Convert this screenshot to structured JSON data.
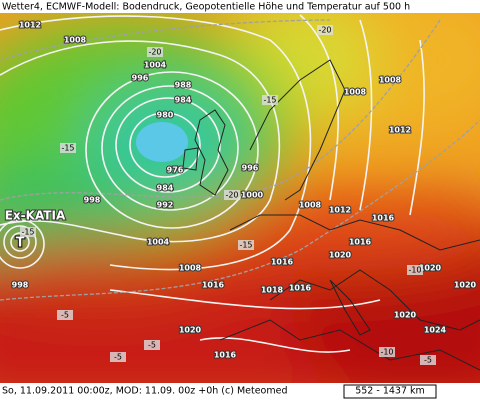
{
  "header": {
    "title": "Wetter4, ECMWF-Modell: Bodendruck, Geopotentielle Höhe und Temperatur auf 500 h"
  },
  "footer": {
    "text": "So, 11.09.2011 00:00z, MOD: 11.09. 00z +0h (c) Meteomed",
    "scale": "552 - 1437 km"
  },
  "storm": {
    "name": "Ex-KATIA",
    "symbol": "T"
  },
  "isobar_labels": [
    "1012",
    "1008",
    "1004",
    "996",
    "988",
    "984",
    "980",
    "976",
    "984",
    "992",
    "996",
    "1000",
    "1004",
    "1008",
    "1016",
    "1020",
    "1016",
    "1008",
    "1012",
    "1016",
    "1016",
    "1020",
    "1008",
    "1008",
    "1012",
    "1020",
    "1020",
    "1020",
    "1024",
    "1016",
    "1018",
    "1016",
    "998",
    "998"
  ],
  "temperature_labels": [
    "-20",
    "-20",
    "-15",
    "-15",
    "-20",
    "-15",
    "-10",
    "-5",
    "-5",
    "-5",
    "-10",
    "-5",
    "-15"
  ]
}
